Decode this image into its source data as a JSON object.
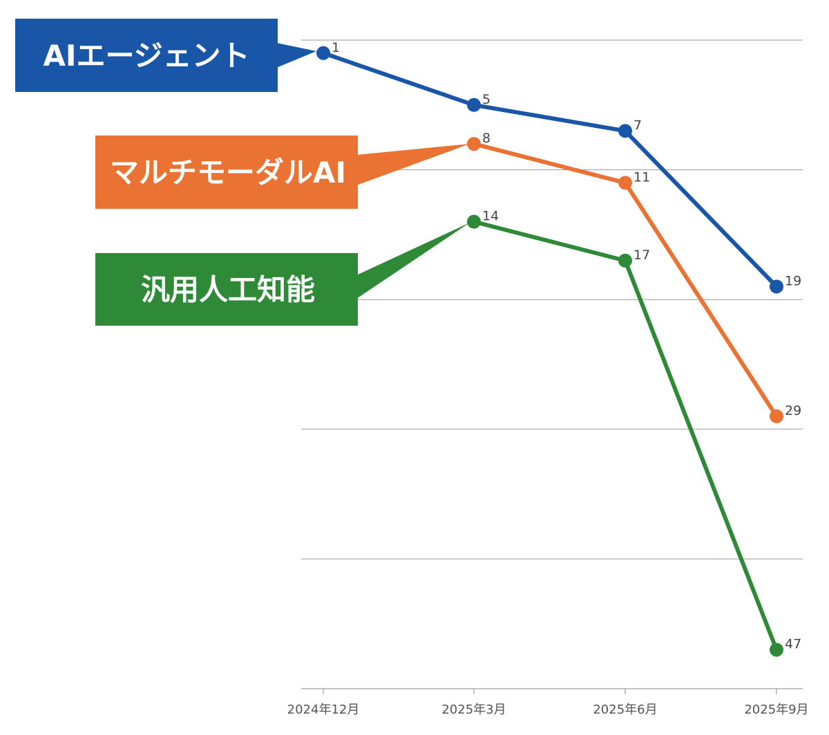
{
  "chart_data": {
    "type": "line",
    "title": "",
    "xlabel": "",
    "ylabel": "",
    "categories": [
      "2024年12月",
      "2025年3月",
      "2025年6月",
      "2025年9月"
    ],
    "ylim": [
      0,
      50
    ],
    "y_inverted": true,
    "grid": true,
    "series": [
      {
        "name": "AIエージェント",
        "color": "#1a56a8",
        "values": [
          1,
          5,
          7,
          19
        ]
      },
      {
        "name": "マルチモーダルAI",
        "color": "#ea7233",
        "values": [
          null,
          8,
          11,
          29
        ]
      },
      {
        "name": "汎用人工知能",
        "color": "#2e8a36",
        "values": [
          null,
          14,
          17,
          47
        ]
      }
    ]
  }
}
